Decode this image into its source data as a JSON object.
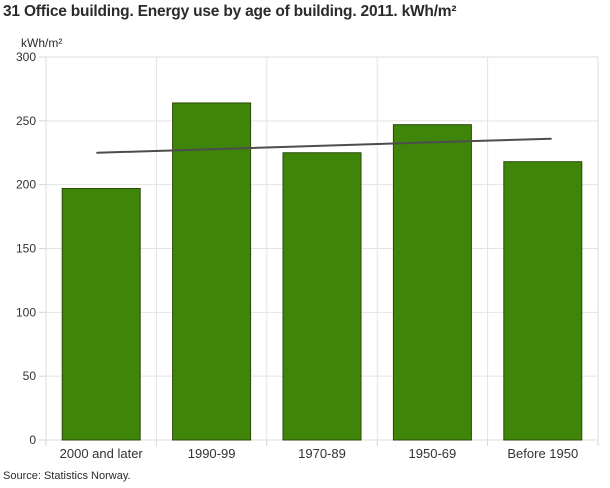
{
  "header": {
    "title": "31 Office building. Energy use by age of building. 2011. kWh/m²"
  },
  "footer": {
    "source": "Source: Statistics Norway."
  },
  "chart_data": {
    "type": "bar",
    "title": "31 Office building. Energy use by age of building. 2011. kWh/m²",
    "categories": [
      "2000 and later",
      "1990-99",
      "1970-89",
      "1950-69",
      "Before 1950"
    ],
    "values": [
      197,
      264,
      225,
      247,
      218
    ],
    "series": [
      {
        "name": "Energy use by age of building",
        "type": "bar",
        "values": [
          197,
          264,
          225,
          247,
          218
        ]
      },
      {
        "name": "Linear trend",
        "type": "line",
        "values": [
          225,
          227.75,
          230.5,
          233.25,
          236
        ]
      }
    ],
    "xlabel": "",
    "ylabel": "kWh/m²",
    "ylim": [
      0,
      300
    ],
    "ytick_step": 50,
    "yticks": [
      0,
      50,
      100,
      150,
      200,
      250,
      300
    ],
    "grid": true,
    "legend": "none",
    "colors": {
      "bar": "#3e8509",
      "bar_border": "#2a4a08",
      "trend_line": "#4d4d4d",
      "grid": "#e4e4e4",
      "border": "#dedede",
      "tick": "#d4d4d4",
      "text": "#333333"
    }
  }
}
